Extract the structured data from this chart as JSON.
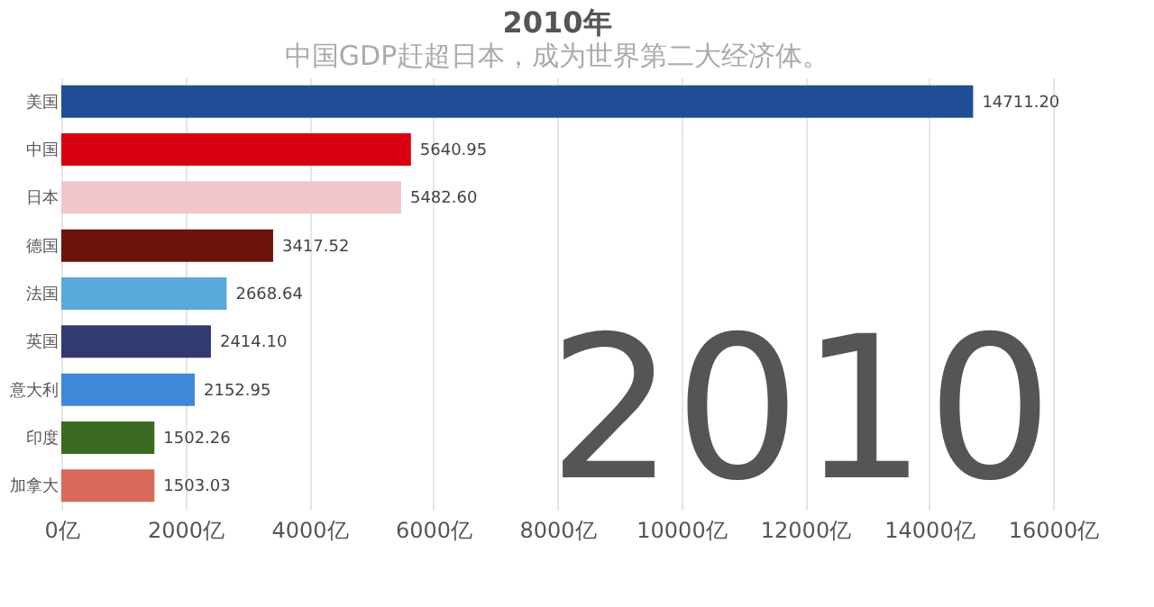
{
  "chart_data": {
    "type": "bar",
    "orientation": "horizontal",
    "title": "2010年",
    "subtitle": "中国GDP赶超日本，成为世界第二大经济体。",
    "categories": [
      "美国",
      "中国",
      "日本",
      "德国",
      "法国",
      "英国",
      "意大利",
      "印度",
      "加拿大"
    ],
    "values": [
      14711.2,
      5640.95,
      5482.6,
      3417.52,
      2668.64,
      2414.1,
      2152.95,
      1502.26,
      1503.03
    ],
    "colors": [
      "#1f4e96",
      "#d90012",
      "#f2c4cc",
      "#6b130c",
      "#5aa9dc",
      "#323a72",
      "#3f87d9",
      "#3d6a22",
      "#d86a5c"
    ],
    "value_labels": [
      "14711.20",
      "5640.95",
      "5482.60",
      "3417.52",
      "2668.64",
      "2414.10",
      "2152.95",
      "1502.26",
      "1503.03"
    ],
    "xlim": [
      0,
      16000
    ],
    "xticks": [
      {
        "value": 0,
        "label": "0亿"
      },
      {
        "value": 2000,
        "label": "2000亿"
      },
      {
        "value": 4000,
        "label": "4000亿"
      },
      {
        "value": 6000,
        "label": "6000亿"
      },
      {
        "value": 8000,
        "label": "8000亿"
      },
      {
        "value": 10000,
        "label": "10000亿"
      },
      {
        "value": 12000,
        "label": "12000亿"
      },
      {
        "value": 14000,
        "label": "14000亿"
      },
      {
        "value": 16000,
        "label": "16000亿"
      }
    ],
    "grid": "x",
    "annotations": [
      "2010"
    ]
  }
}
